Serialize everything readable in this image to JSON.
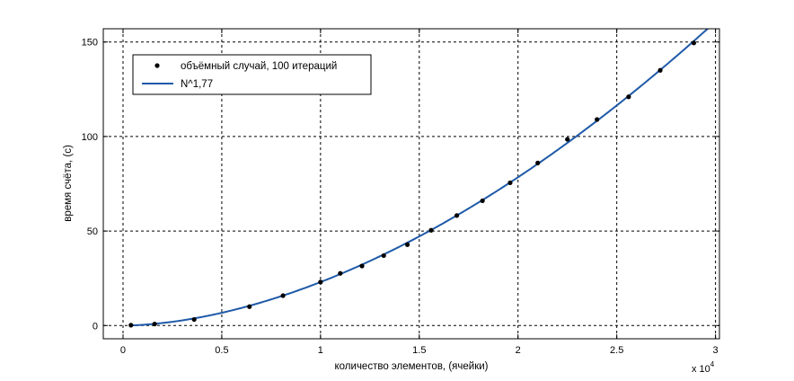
{
  "chart_data": {
    "type": "scatter",
    "xlabel": "количество элементов, (ячейки)",
    "ylabel": "время счёта, (с)",
    "x_exponent_label": "x 10",
    "x_exponent_power": "4",
    "xlim": [
      -0.1,
      3.02
    ],
    "ylim": [
      -7,
      157
    ],
    "x_ticks": [
      0,
      0.5,
      1,
      1.5,
      2,
      2.5,
      3
    ],
    "x_tick_labels": [
      "0",
      "0.5",
      "1",
      "1.5",
      "2",
      "2.5",
      "3"
    ],
    "y_ticks": [
      0,
      50,
      100,
      150
    ],
    "y_tick_labels": [
      "0",
      "50",
      "100",
      "150"
    ],
    "grid": true,
    "legend_position": "top-left",
    "series": [
      {
        "name": "объёмный случай, 100 итераций",
        "kind": "points",
        "color": "#000000",
        "x": [
          0.04,
          0.16,
          0.36,
          0.64,
          0.81,
          1.0,
          1.1,
          1.21,
          1.32,
          1.44,
          1.56,
          1.69,
          1.82,
          1.96,
          2.1,
          2.25,
          2.4,
          2.56,
          2.72,
          2.89
        ],
        "y": [
          0.2,
          0.8,
          3.2,
          10.0,
          15.8,
          23.0,
          27.6,
          31.5,
          37.0,
          42.8,
          50.4,
          58.2,
          66.0,
          75.5,
          86.0,
          98.5,
          109.0,
          121.0,
          135.0,
          149.5
        ]
      },
      {
        "name": "N^1,77",
        "kind": "line",
        "color": "#1f5aa8",
        "formula": "power",
        "coef": 23.0,
        "exponent": 1.77,
        "x_range": [
          0.04,
          2.99
        ]
      }
    ]
  }
}
